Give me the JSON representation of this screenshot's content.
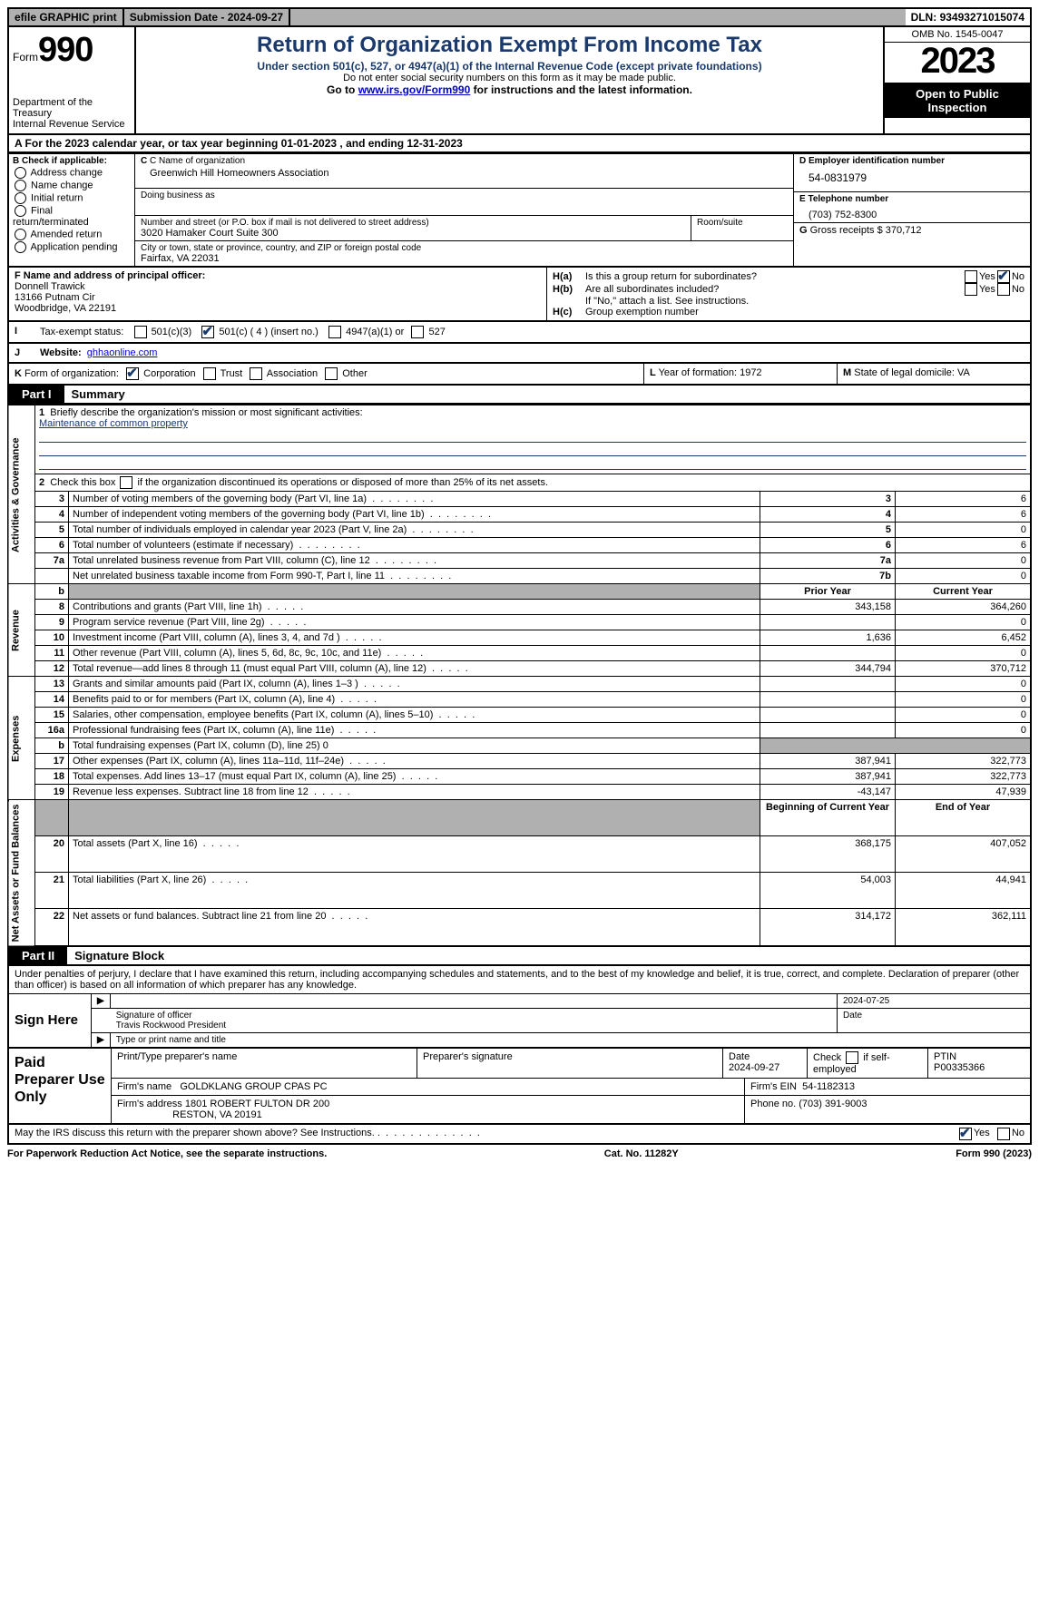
{
  "topbar": {
    "efile": "efile GRAPHIC print",
    "submission_label": "Submission Date - ",
    "submission_date": "2024-09-27",
    "dln_label": "DLN: ",
    "dln": "93493271015074"
  },
  "header": {
    "form_word": "Form",
    "form_no": "990",
    "title": "Return of Organization Exempt From Income Tax",
    "subtitle": "Under section 501(c), 527, or 4947(a)(1) of the Internal Revenue Code (except private foundations)",
    "ssn_note": "Do not enter social security numbers on this form as it may be made public.",
    "goto_pre": "Go to ",
    "goto_link": "www.irs.gov/Form990",
    "goto_post": " for instructions and the latest information.",
    "dept": "Department of the Treasury",
    "irs": "Internal Revenue Service",
    "omb": "OMB No. 1545-0047",
    "year": "2023",
    "open": "Open to Public Inspection"
  },
  "lineA": {
    "pre": "A For the 2023 calendar year, or tax year beginning ",
    "begin": "01-01-2023",
    "mid": "   , and ending ",
    "end": "12-31-2023"
  },
  "colB": {
    "hdr": "B Check if applicable:",
    "items": [
      "Address change",
      "Name change",
      "Initial return",
      "Final return/terminated",
      "Amended return",
      "Application pending"
    ]
  },
  "colC": {
    "name_lbl": "C Name of organization",
    "name": "Greenwich Hill Homeowners Association",
    "dba_lbl": "Doing business as",
    "dba": "",
    "addr_lbl": "Number and street (or P.O. box if mail is not delivered to street address)",
    "room_lbl": "Room/suite",
    "addr": "3020 Hamaker Court Suite 300",
    "city_lbl": "City or town, state or province, country, and ZIP or foreign postal code",
    "city": "Fairfax, VA  22031"
  },
  "colD": {
    "lbl": "D Employer identification number",
    "val": "54-0831979"
  },
  "colE": {
    "lbl": "E Telephone number",
    "val": "(703) 752-8300"
  },
  "colG": {
    "lbl": "G",
    "text": "Gross receipts $",
    "val": "370,712"
  },
  "colF": {
    "lbl": "F  Name and address of principal officer:",
    "name": "Donnell Trawick",
    "addr1": "13166 Putnam Cir",
    "addr2": "Woodbridge, VA  22191"
  },
  "colH": {
    "a_lbl": "H(a)",
    "a_text": "Is this a group return for subordinates?",
    "a_yes": "Yes",
    "a_no": "No",
    "a_checked": "no",
    "b_lbl": "H(b)",
    "b_text": "Are all subordinates included?",
    "b_yes": "Yes",
    "b_no": "No",
    "b_note": "If \"No,\" attach a list. See instructions.",
    "c_lbl": "H(c)",
    "c_text": "Group exemption number"
  },
  "rowI": {
    "lbl": "I",
    "text": "Tax-exempt status:",
    "opt1": "501(c)(3)",
    "opt2": "501(c) ( 4 ) (insert no.)",
    "opt2_checked": true,
    "opt3": "4947(a)(1) or",
    "opt4": "527"
  },
  "rowJ": {
    "lbl": "J",
    "text": "Website:",
    "val": "ghhaonline.com"
  },
  "rowK": {
    "lbl": "K",
    "text": "Form of organization:",
    "opts": [
      "Corporation",
      "Trust",
      "Association",
      "Other"
    ],
    "checked_idx": 0
  },
  "rowL": {
    "lbl": "L",
    "text": "Year of formation:",
    "val": "1972"
  },
  "rowM": {
    "lbl": "M",
    "text": "State of legal domicile:",
    "val": "VA"
  },
  "part1": {
    "tab": "Part I",
    "title": "Summary"
  },
  "summary": {
    "sections": [
      {
        "label": "Activities & Governance",
        "rows": [
          {
            "n": "1",
            "text": "Briefly describe the organization's mission or most significant activities:",
            "type": "mission",
            "mission": "Maintenance of common property"
          },
          {
            "n": "2",
            "text": "Check this box      if the organization discontinued its operations or disposed of more than 25% of its net assets.",
            "type": "checkbox"
          },
          {
            "n": "3",
            "text": "Number of voting members of the governing body (Part VI, line 1a)",
            "box": "3",
            "val": "6"
          },
          {
            "n": "4",
            "text": "Number of independent voting members of the governing body (Part VI, line 1b)",
            "box": "4",
            "val": "6"
          },
          {
            "n": "5",
            "text": "Total number of individuals employed in calendar year 2023 (Part V, line 2a)",
            "box": "5",
            "val": "0"
          },
          {
            "n": "6",
            "text": "Total number of volunteers (estimate if necessary)",
            "box": "6",
            "val": "6"
          },
          {
            "n": "7a",
            "text": "Total unrelated business revenue from Part VIII, column (C), line 12",
            "box": "7a",
            "val": "0"
          },
          {
            "n": "",
            "text": "Net unrelated business taxable income from Form 990-T, Part I, line 11",
            "box": "7b",
            "val": "0"
          }
        ]
      },
      {
        "label": "Revenue",
        "header": [
          "Prior Year",
          "Current Year"
        ],
        "rows": [
          {
            "n": "b",
            "text": "",
            "type": "spacer"
          },
          {
            "n": "8",
            "text": "Contributions and grants (Part VIII, line 1h)",
            "prior": "343,158",
            "curr": "364,260"
          },
          {
            "n": "9",
            "text": "Program service revenue (Part VIII, line 2g)",
            "prior": "",
            "curr": "0"
          },
          {
            "n": "10",
            "text": "Investment income (Part VIII, column (A), lines 3, 4, and 7d )",
            "prior": "1,636",
            "curr": "6,452"
          },
          {
            "n": "11",
            "text": "Other revenue (Part VIII, column (A), lines 5, 6d, 8c, 9c, 10c, and 11e)",
            "prior": "",
            "curr": "0"
          },
          {
            "n": "12",
            "text": "Total revenue—add lines 8 through 11 (must equal Part VIII, column (A), line 12)",
            "prior": "344,794",
            "curr": "370,712"
          }
        ]
      },
      {
        "label": "Expenses",
        "rows": [
          {
            "n": "13",
            "text": "Grants and similar amounts paid (Part IX, column (A), lines 1–3 )",
            "prior": "",
            "curr": "0"
          },
          {
            "n": "14",
            "text": "Benefits paid to or for members (Part IX, column (A), line 4)",
            "prior": "",
            "curr": "0"
          },
          {
            "n": "15",
            "text": "Salaries, other compensation, employee benefits (Part IX, column (A), lines 5–10)",
            "prior": "",
            "curr": "0"
          },
          {
            "n": "16a",
            "text": "Professional fundraising fees (Part IX, column (A), line 11e)",
            "prior": "",
            "curr": "0"
          },
          {
            "n": "b",
            "text": "Total fundraising expenses (Part IX, column (D), line 25) 0",
            "type": "single",
            "grey": true
          },
          {
            "n": "17",
            "text": "Other expenses (Part IX, column (A), lines 11a–11d, 11f–24e)",
            "prior": "387,941",
            "curr": "322,773"
          },
          {
            "n": "18",
            "text": "Total expenses. Add lines 13–17 (must equal Part IX, column (A), line 25)",
            "prior": "387,941",
            "curr": "322,773"
          },
          {
            "n": "19",
            "text": "Revenue less expenses. Subtract line 18 from line 12",
            "prior": "-43,147",
            "curr": "47,939"
          }
        ]
      },
      {
        "label": "Net Assets or Fund Balances",
        "header": [
          "Beginning of Current Year",
          "End of Year"
        ],
        "rows": [
          {
            "n": "",
            "text": "",
            "type": "header_only"
          },
          {
            "n": "20",
            "text": "Total assets (Part X, line 16)",
            "prior": "368,175",
            "curr": "407,052"
          },
          {
            "n": "21",
            "text": "Total liabilities (Part X, line 26)",
            "prior": "54,003",
            "curr": "44,941"
          },
          {
            "n": "22",
            "text": "Net assets or fund balances. Subtract line 21 from line 20",
            "prior": "314,172",
            "curr": "362,111"
          }
        ]
      }
    ]
  },
  "part2": {
    "tab": "Part II",
    "title": "Signature Block"
  },
  "sig": {
    "declaration": "Under penalties of perjury, I declare that I have examined this return, including accompanying schedules and statements, and to the best of my knowledge and belief, it is true, correct, and complete. Declaration of preparer (other than officer) is based on all information of which preparer has any knowledge.",
    "sign_here": "Sign Here",
    "sig_officer_lbl": "Signature of officer",
    "officer_name": "Travis Rockwood President",
    "type_name_lbl": "Type or print name and title",
    "date_lbl": "Date",
    "sig_date": "2024-07-25"
  },
  "preparer": {
    "lbl": "Paid Preparer Use Only",
    "print_name_lbl": "Print/Type preparer's name",
    "print_name": "",
    "sig_lbl": "Preparer's signature",
    "date_lbl": "Date",
    "date": "2024-09-27",
    "self_lbl": "Check       if self-employed",
    "ptin_lbl": "PTIN",
    "ptin": "P00335366",
    "firm_name_lbl": "Firm's name",
    "firm_name": "GOLDKLANG GROUP CPAS PC",
    "firm_ein_lbl": "Firm's EIN",
    "firm_ein": "54-1182313",
    "firm_addr_lbl": "Firm's address",
    "firm_addr1": "1801 ROBERT FULTON DR 200",
    "firm_addr2": "RESTON, VA  20191",
    "phone_lbl": "Phone no.",
    "phone": "(703) 391-9003"
  },
  "discuss": {
    "text": "May the IRS discuss this return with the preparer shown above? See Instructions.",
    "yes": "Yes",
    "no": "No",
    "checked": "yes"
  },
  "footer": {
    "left": "For Paperwork Reduction Act Notice, see the separate instructions.",
    "mid": "Cat. No. 11282Y",
    "right": "Form 990 (2023)"
  }
}
